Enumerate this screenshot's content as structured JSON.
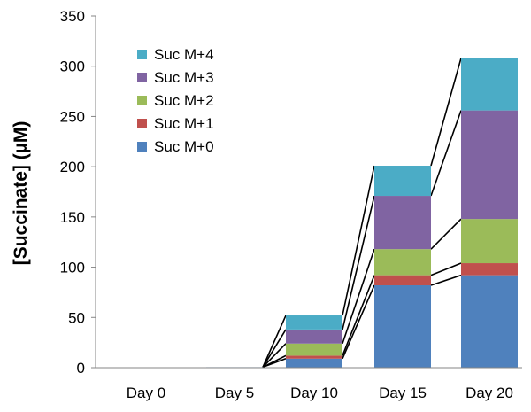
{
  "chart_data": {
    "type": "bar",
    "stacked": true,
    "categories": [
      "Day 0",
      "Day 5",
      "Day 10",
      "Day 15",
      "Day 20"
    ],
    "series": [
      {
        "name": "Suc M+0",
        "color": "#4F81BD",
        "values": [
          0.3,
          0.5,
          9,
          82,
          92
        ]
      },
      {
        "name": "Suc M+1",
        "color": "#C0504D",
        "values": [
          0,
          0,
          3,
          10,
          12
        ]
      },
      {
        "name": "Suc M+2",
        "color": "#9BBB59",
        "values": [
          0,
          0,
          12,
          26,
          44
        ]
      },
      {
        "name": "Suc M+3",
        "color": "#8064A2",
        "values": [
          0,
          0,
          14,
          53,
          108
        ]
      },
      {
        "name": "Suc M+4",
        "color": "#4BACC6",
        "values": [
          0,
          0,
          14,
          30,
          52
        ]
      }
    ],
    "title": "",
    "xlabel": "",
    "ylabel": "[Succinate] (µM)",
    "ylim": [
      0,
      350
    ],
    "yticks": [
      0,
      50,
      100,
      150,
      200,
      250,
      300,
      350
    ],
    "grid": false,
    "legend": "top-left"
  }
}
